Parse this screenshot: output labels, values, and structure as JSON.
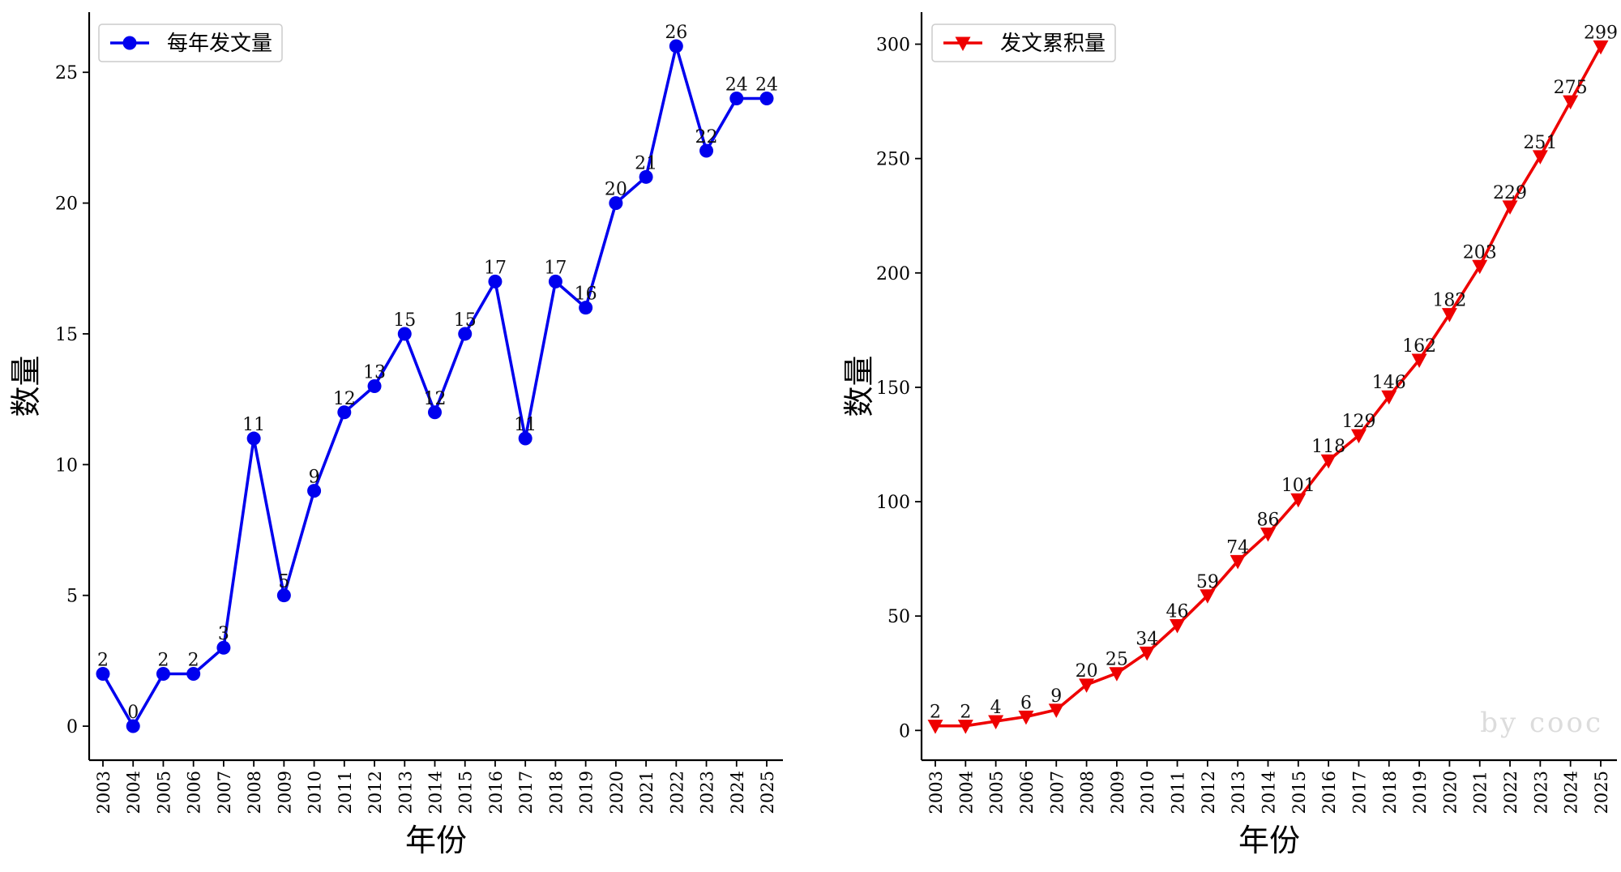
{
  "watermark": "by cooc",
  "chart_data": [
    {
      "type": "line",
      "title": "",
      "xlabel": "年份",
      "ylabel": "数量",
      "x": [
        2003,
        2004,
        2005,
        2006,
        2007,
        2008,
        2009,
        2010,
        2011,
        2012,
        2013,
        2014,
        2015,
        2016,
        2017,
        2018,
        2019,
        2020,
        2021,
        2022,
        2023,
        2024,
        2025
      ],
      "ylim": [
        -1.3,
        27.3
      ],
      "yticks": [
        0,
        5,
        10,
        15,
        20,
        25
      ],
      "series": [
        {
          "name": "每年发文量",
          "marker": "circle",
          "color": "#0000ee",
          "values": [
            2,
            0,
            2,
            2,
            3,
            11,
            5,
            9,
            12,
            13,
            15,
            12,
            15,
            17,
            11,
            17,
            16,
            20,
            21,
            26,
            22,
            24,
            24
          ]
        }
      ],
      "legend_position": "top-left",
      "grid": false
    },
    {
      "type": "line",
      "title": "",
      "xlabel": "年份",
      "ylabel": "数量",
      "x": [
        2003,
        2004,
        2005,
        2006,
        2007,
        2008,
        2009,
        2010,
        2011,
        2012,
        2013,
        2014,
        2015,
        2016,
        2017,
        2018,
        2019,
        2020,
        2021,
        2022,
        2023,
        2024,
        2025
      ],
      "ylim": [
        -13,
        314
      ],
      "yticks": [
        0,
        50,
        100,
        150,
        200,
        250,
        300
      ],
      "series": [
        {
          "name": "发文累积量",
          "marker": "triangle-down",
          "color": "#ee0000",
          "values": [
            2,
            2,
            4,
            6,
            9,
            20,
            25,
            34,
            46,
            59,
            74,
            86,
            101,
            118,
            129,
            146,
            162,
            182,
            203,
            229,
            251,
            275,
            299
          ]
        }
      ],
      "legend_position": "top-left",
      "grid": false
    }
  ]
}
